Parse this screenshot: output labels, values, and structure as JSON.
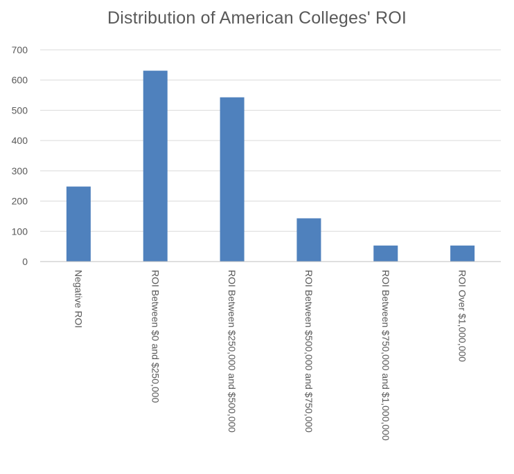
{
  "chart_data": {
    "type": "bar",
    "title": "Distribution of American Colleges' ROI",
    "xlabel": "",
    "ylabel": "",
    "categories": [
      "Negative ROI",
      "ROI Between $0 and $250,000",
      "ROI Between $250,000 and $500,000",
      "ROI Between $500,000 and $750,000",
      "ROI Between $750,000 and $1,000,000",
      "ROI Over $1,000,000"
    ],
    "values": [
      248,
      631,
      543,
      143,
      53,
      53
    ],
    "ylim": [
      0,
      700
    ],
    "yticks": [
      0,
      100,
      200,
      300,
      400,
      500,
      600,
      700
    ],
    "grid": true,
    "legend": "none",
    "bar_color": "#4f81bd"
  }
}
